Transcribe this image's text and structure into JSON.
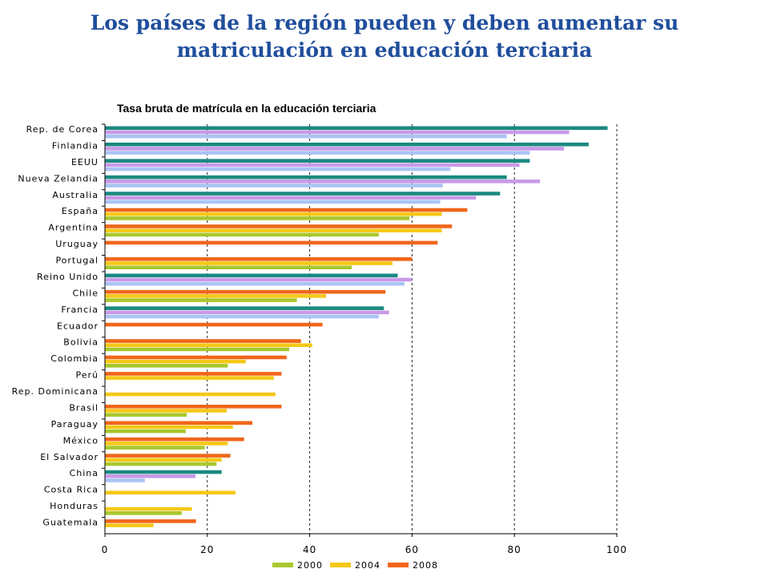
{
  "title_line1": "Los países de la región pueden y deben aumentar su",
  "title_line2": "matriculación en educación terciaria",
  "chart_data": {
    "type": "bar",
    "orientation": "horizontal",
    "title": "Tasa bruta de matrícula en la educación terciaria",
    "xlim": [
      0,
      100
    ],
    "xticks": [
      0,
      20,
      40,
      60,
      80,
      100
    ],
    "grid": "vertical dashed",
    "legend_position": "bottom",
    "categories": [
      "Rep. de Corea",
      "Finlandia",
      "EEUU",
      "Nueva Zelandia",
      "Australia",
      "España",
      "Argentina",
      "Uruguay",
      "Portugal",
      "Reino Unido",
      "Chile",
      "Francia",
      "Ecuador",
      "Bolivia",
      "Colombia",
      "Perú",
      "Rep. Dominicana",
      "Brasil",
      "Paraguay",
      "México",
      "El Salvador",
      "China",
      "Costa Rica",
      "Honduras",
      "Guatemala"
    ],
    "series": [
      {
        "name": "2000",
        "color": "#a8c82e",
        "values": [
          null,
          null,
          null,
          null,
          null,
          59.5,
          53.5,
          null,
          48.2,
          null,
          37.5,
          null,
          null,
          36,
          24,
          null,
          null,
          16,
          15.8,
          19.5,
          21.8,
          null,
          null,
          15,
          null
        ]
      },
      {
        "name": "2004",
        "color": "#f5c818",
        "values": [
          null,
          null,
          null,
          null,
          null,
          65.8,
          65.8,
          null,
          56.2,
          null,
          43.2,
          null,
          null,
          40.5,
          27.5,
          33,
          33.3,
          23.8,
          25,
          24,
          22.8,
          null,
          25.5,
          17,
          9.5
        ]
      },
      {
        "name": "2008",
        "color": "#f0661a",
        "values": [
          null,
          null,
          null,
          null,
          null,
          70.8,
          67.8,
          65,
          60,
          null,
          54.8,
          null,
          42.5,
          38.3,
          35.5,
          34.5,
          null,
          34.5,
          28.8,
          27.2,
          24.5,
          null,
          null,
          null,
          17.8
        ]
      }
    ],
    "oecd_series": {
      "bar1_color": "#1a8a80",
      "bar2_color": "#c89ae8",
      "bar3_color": "#aac4f4",
      "bar1": [
        98.2,
        94.5,
        83,
        78.5,
        77.2,
        null,
        null,
        null,
        null,
        57.2,
        null,
        54.5,
        null,
        null,
        null,
        null,
        null,
        null,
        null,
        null,
        null,
        22.8,
        null,
        null,
        null
      ],
      "bar2": [
        90.7,
        89.7,
        81,
        85,
        72.5,
        null,
        null,
        null,
        null,
        60,
        null,
        55.5,
        null,
        null,
        null,
        null,
        null,
        null,
        null,
        null,
        null,
        17.7,
        null,
        null,
        null
      ],
      "bar3": [
        78.5,
        83,
        67.5,
        66,
        65.5,
        null,
        null,
        null,
        null,
        58.5,
        null,
        53.5,
        null,
        null,
        null,
        null,
        null,
        null,
        null,
        null,
        null,
        7.8,
        null,
        null,
        null
      ]
    }
  }
}
